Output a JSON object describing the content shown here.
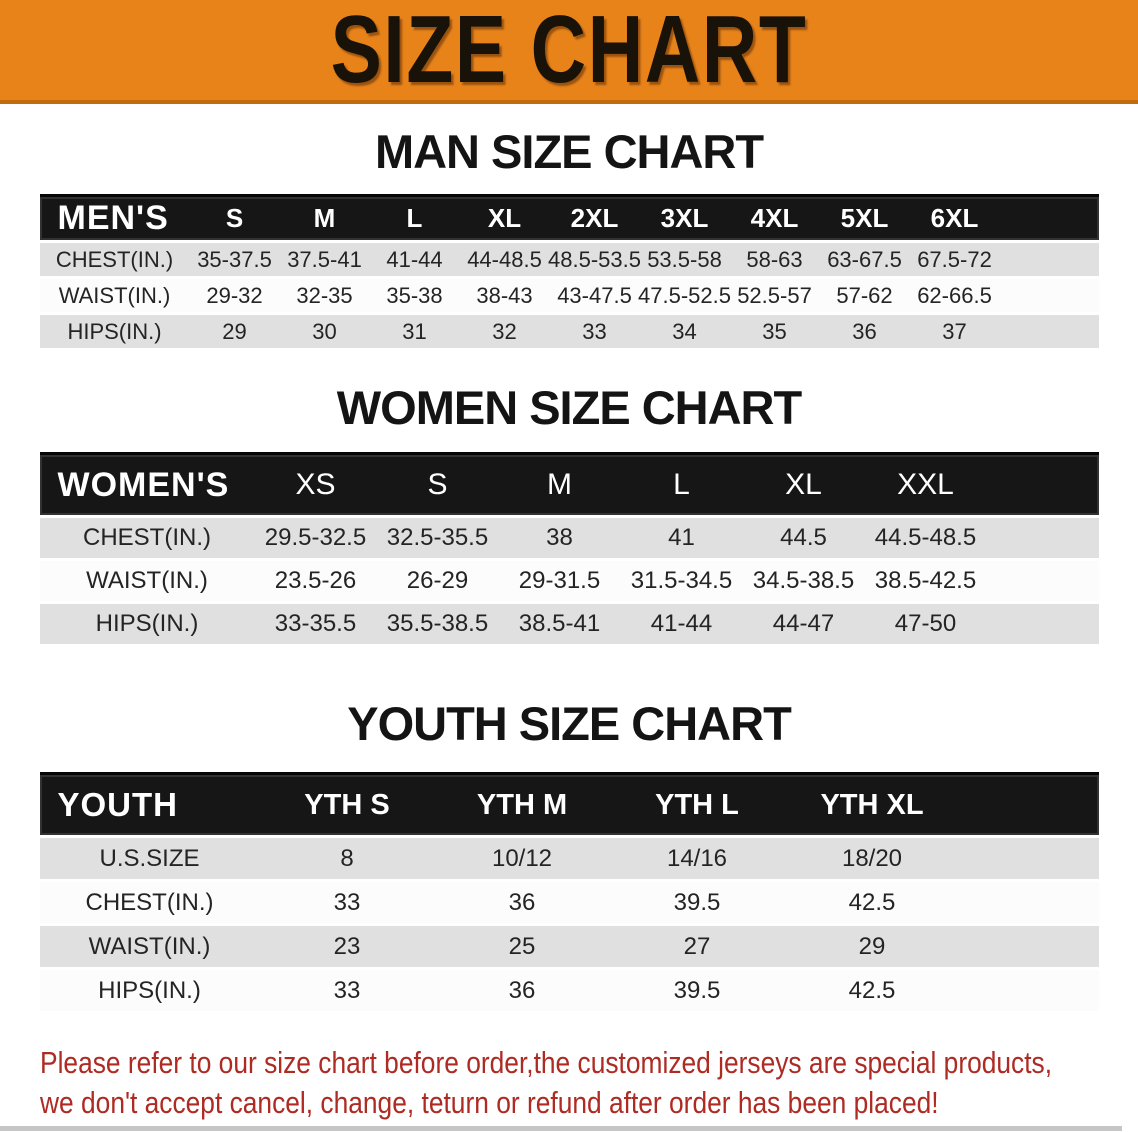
{
  "banner": {
    "title": "SIZE CHART"
  },
  "sections": [
    {
      "id": "men",
      "heading": "MAN SIZE CHART",
      "corner_label": "MEN'S",
      "sizes": [
        "S",
        "M",
        "L",
        "XL",
        "2XL",
        "3XL",
        "4XL",
        "5XL",
        "6XL"
      ],
      "rows": [
        {
          "label": "CHEST(IN.)",
          "values": [
            "35-37.5",
            "37.5-41",
            "41-44",
            "44-48.5",
            "48.5-53.5",
            "53.5-58",
            "58-63",
            "63-67.5",
            "67.5-72"
          ]
        },
        {
          "label": "WAIST(IN.)",
          "values": [
            "29-32",
            "32-35",
            "35-38",
            "38-43",
            "43-47.5",
            "47.5-52.5",
            "52.5-57",
            "57-62",
            "62-66.5"
          ]
        },
        {
          "label": "HIPS(IN.)",
          "values": [
            "29",
            "30",
            "31",
            "32",
            "33",
            "34",
            "35",
            "36",
            "37"
          ]
        }
      ]
    },
    {
      "id": "women",
      "heading": "WOMEN SIZE CHART",
      "corner_label": "WOMEN'S",
      "sizes": [
        "XS",
        "S",
        "M",
        "L",
        "XL",
        "XXL"
      ],
      "rows": [
        {
          "label": "CHEST(IN.)",
          "values": [
            "29.5-32.5",
            "32.5-35.5",
            "38",
            "41",
            "44.5",
            "44.5-48.5"
          ]
        },
        {
          "label": "WAIST(IN.)",
          "values": [
            "23.5-26",
            "26-29",
            "29-31.5",
            "31.5-34.5",
            "34.5-38.5",
            "38.5-42.5"
          ]
        },
        {
          "label": "HIPS(IN.)",
          "values": [
            "33-35.5",
            "35.5-38.5",
            "38.5-41",
            "41-44",
            "44-47",
            "47-50"
          ]
        }
      ]
    },
    {
      "id": "youth",
      "heading": "YOUTH SIZE CHART",
      "corner_label": "YOUTH",
      "sizes": [
        "YTH S",
        "YTH M",
        "YTH L",
        "YTH XL"
      ],
      "rows": [
        {
          "label": "U.S.SIZE",
          "values": [
            "8",
            "10/12",
            "14/16",
            "18/20"
          ]
        },
        {
          "label": "CHEST(IN.)",
          "values": [
            "33",
            "36",
            "39.5",
            "42.5"
          ]
        },
        {
          "label": "WAIST(IN.)",
          "values": [
            "23",
            "25",
            "27",
            "29"
          ]
        },
        {
          "label": "HIPS(IN.)",
          "values": [
            "33",
            "36",
            "39.5",
            "42.5"
          ]
        }
      ]
    }
  ],
  "disclaimer": {
    "line1": "Please refer to our size chart before order,the customized jerseys are special products,",
    "line2": "we don't accept cancel, change, teturn or refund after order has been placed!"
  },
  "colors": {
    "banner_orange": "#E8831A",
    "header_black": "#161616",
    "row_gray": "#E0E0E0",
    "row_white": "#FCFCFC",
    "disclaimer_red": "#AE2B24"
  }
}
